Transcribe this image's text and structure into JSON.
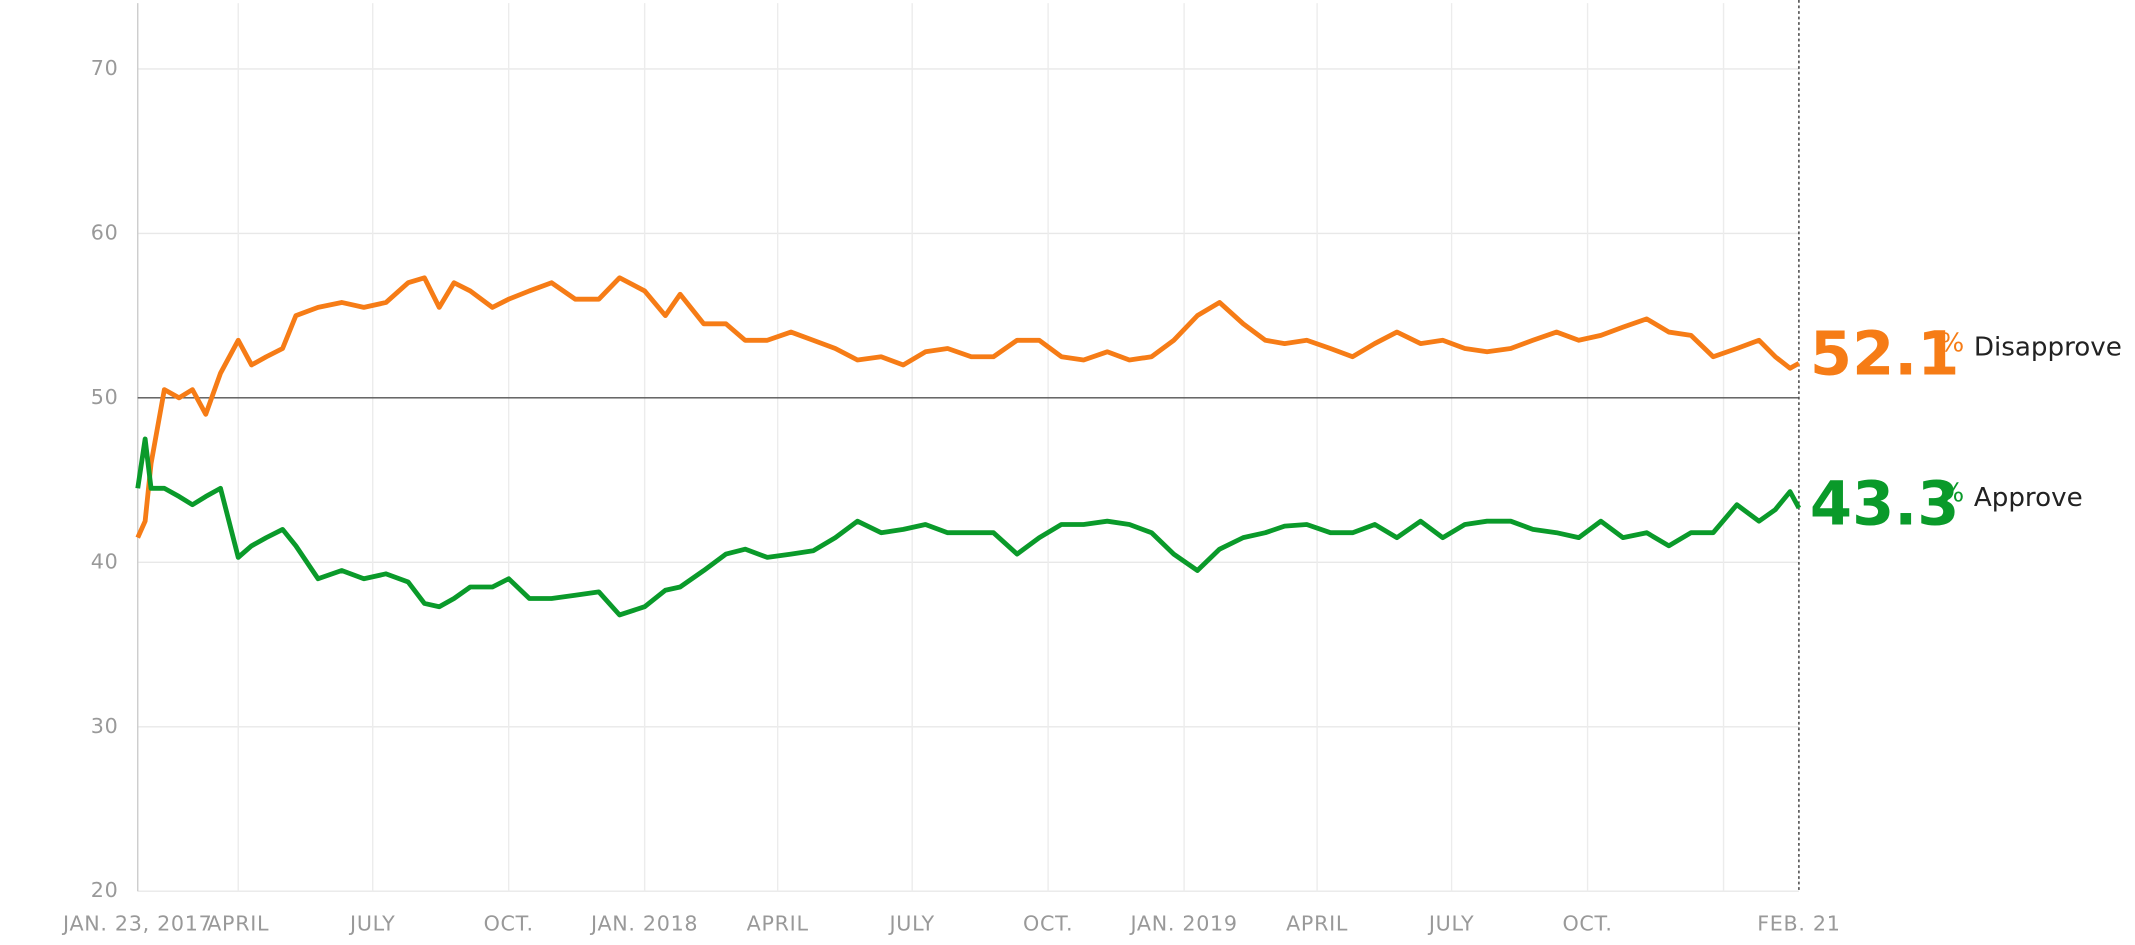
{
  "chart_data": {
    "type": "line",
    "x": [
      "2017-01-23",
      "2017-01-28",
      "2017-02-01",
      "2017-02-10",
      "2017-02-20",
      "2017-03-01",
      "2017-03-10",
      "2017-03-20",
      "2017-04-01",
      "2017-04-10",
      "2017-04-20",
      "2017-05-01",
      "2017-05-10",
      "2017-05-25",
      "2017-06-10",
      "2017-06-25",
      "2017-07-10",
      "2017-07-25",
      "2017-08-05",
      "2017-08-15",
      "2017-08-25",
      "2017-09-05",
      "2017-09-20",
      "2017-10-01",
      "2017-10-15",
      "2017-10-30",
      "2017-11-15",
      "2017-12-01",
      "2017-12-15",
      "2018-01-01",
      "2018-01-15",
      "2018-01-25",
      "2018-02-10",
      "2018-02-25",
      "2018-03-10",
      "2018-03-25",
      "2018-04-10",
      "2018-04-25",
      "2018-05-10",
      "2018-05-25",
      "2018-06-10",
      "2018-06-25",
      "2018-07-10",
      "2018-07-25",
      "2018-08-10",
      "2018-08-25",
      "2018-09-10",
      "2018-09-25",
      "2018-10-10",
      "2018-10-25",
      "2018-11-10",
      "2018-11-25",
      "2018-12-10",
      "2018-12-25",
      "2019-01-10",
      "2019-01-25",
      "2019-02-10",
      "2019-02-25",
      "2019-03-10",
      "2019-03-25",
      "2019-04-10",
      "2019-04-25",
      "2019-05-10",
      "2019-05-25",
      "2019-06-10",
      "2019-06-25",
      "2019-07-10",
      "2019-07-25",
      "2019-08-10",
      "2019-08-25",
      "2019-09-10",
      "2019-09-25",
      "2019-10-10",
      "2019-10-25",
      "2019-11-10",
      "2019-11-25",
      "2019-12-10",
      "2019-12-25",
      "2020-01-10",
      "2020-01-25",
      "2020-02-05",
      "2020-02-15",
      "2020-02-21"
    ],
    "series": [
      {
        "name": "Disapprove",
        "color": "#f67c16",
        "current": 52.1,
        "unit": "%",
        "values": [
          41.5,
          42.5,
          46,
          50.5,
          50,
          50.5,
          49,
          51.5,
          53.5,
          52,
          52.5,
          53,
          55,
          55.5,
          55.8,
          55.5,
          55.8,
          57,
          57.3,
          55.5,
          57,
          56.5,
          55.5,
          56,
          56.5,
          57,
          56,
          56,
          57.3,
          56.5,
          55,
          56.3,
          54.5,
          54.5,
          53.5,
          53.5,
          54,
          53.5,
          53,
          52.3,
          52.5,
          52,
          52.8,
          53,
          52.5,
          52.5,
          53.5,
          53.5,
          52.5,
          52.3,
          52.8,
          52.3,
          52.5,
          53.5,
          55,
          55.8,
          54.5,
          53.5,
          53.3,
          53.5,
          53,
          52.5,
          53.3,
          54,
          53.3,
          53.5,
          53,
          52.8,
          53,
          53.5,
          54,
          53.5,
          53.8,
          54.3,
          54.8,
          54,
          53.8,
          52.5,
          53,
          53.5,
          52.5,
          51.8,
          52.1
        ]
      },
      {
        "name": "Approve",
        "color": "#0a9a2a",
        "current": 43.3,
        "unit": "%",
        "values": [
          44.5,
          47.5,
          44.5,
          44.5,
          44,
          43.5,
          44,
          44.5,
          40.3,
          41,
          41.5,
          42,
          41,
          39,
          39.5,
          39,
          39.3,
          38.8,
          37.5,
          37.3,
          37.8,
          38.5,
          38.5,
          39,
          37.8,
          37.8,
          38,
          38.2,
          36.8,
          37.3,
          38.3,
          38.5,
          39.5,
          40.5,
          40.8,
          40.3,
          40.5,
          40.7,
          41.5,
          42.5,
          41.8,
          42,
          42.3,
          41.8,
          41.8,
          41.8,
          40.5,
          41.5,
          42.3,
          42.3,
          42.5,
          42.3,
          41.8,
          40.5,
          39.5,
          40.8,
          41.5,
          41.8,
          42.2,
          42.3,
          41.8,
          41.8,
          42.3,
          41.5,
          42.5,
          41.5,
          42.3,
          42.5,
          42.5,
          42,
          41.8,
          41.5,
          42.5,
          41.5,
          41.8,
          41,
          41.8,
          41.8,
          43.5,
          42.5,
          43.2,
          44.3,
          43.3
        ]
      }
    ],
    "xlim": [
      "2017-01-23",
      "2020-02-21"
    ],
    "xticks": [
      {
        "value": "2017-01-23",
        "label": "JAN. 23, 2017"
      },
      {
        "value": "2017-04-01",
        "label": "APRIL"
      },
      {
        "value": "2017-07-01",
        "label": "JULY"
      },
      {
        "value": "2017-10-01",
        "label": "OCT."
      },
      {
        "value": "2018-01-01",
        "label": "JAN. 2018"
      },
      {
        "value": "2018-04-01",
        "label": "APRIL"
      },
      {
        "value": "2018-07-01",
        "label": "JULY"
      },
      {
        "value": "2018-10-01",
        "label": "OCT."
      },
      {
        "value": "2019-01-01",
        "label": "JAN. 2019"
      },
      {
        "value": "2019-04-01",
        "label": "APRIL"
      },
      {
        "value": "2019-07-01",
        "label": "JULY"
      },
      {
        "value": "2019-10-01",
        "label": "OCT."
      },
      {
        "value": "2020-01-01",
        "label": null
      },
      {
        "value": "2020-02-21",
        "label": "FEB. 21"
      }
    ],
    "ylim": [
      20,
      74
    ],
    "yticks": [
      20,
      30,
      40,
      50,
      60,
      70
    ],
    "reference_line": 50,
    "grid": true
  }
}
